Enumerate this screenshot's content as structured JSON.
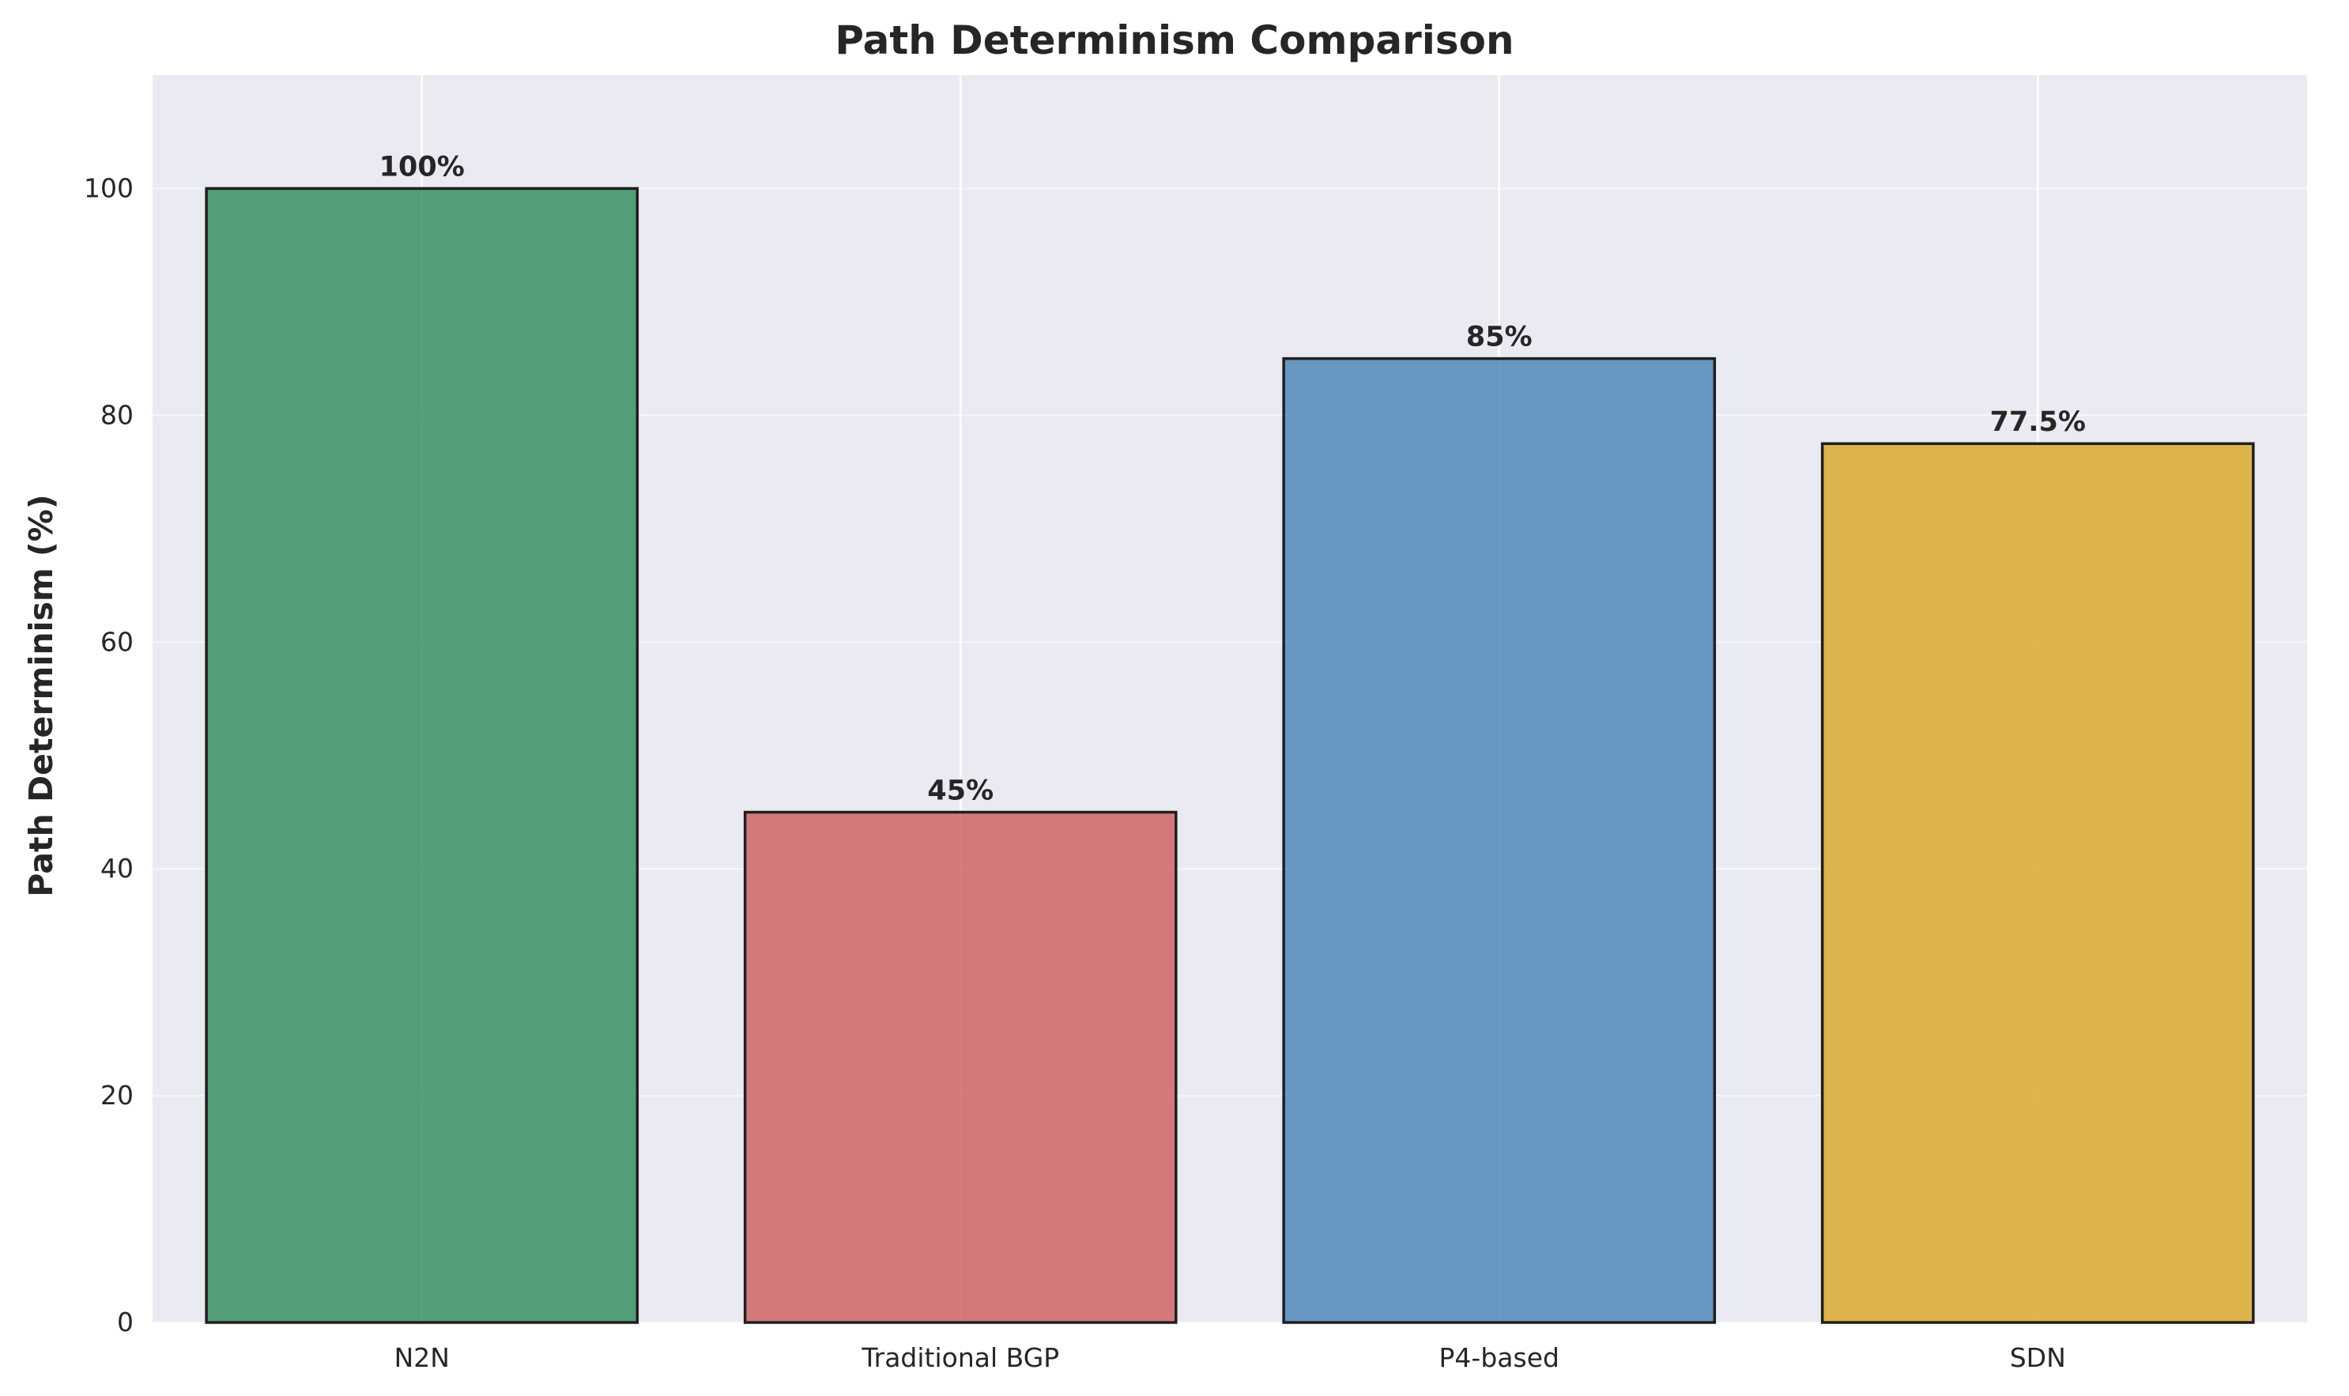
{
  "chart_data": {
    "type": "bar",
    "title": "Path Determinism Comparison",
    "xlabel": "",
    "ylabel": "Path Determinism (%)",
    "categories": [
      "N2N",
      "Traditional BGP",
      "P4-based",
      "SDN"
    ],
    "values": [
      100,
      45,
      85,
      77.5
    ],
    "value_labels": [
      "100%",
      "45%",
      "85%",
      "77.5%"
    ],
    "colors": [
      "#2e8b57",
      "#cd5c5c",
      "#4682b4",
      "#daa520"
    ],
    "ylim": [
      0,
      110
    ],
    "yticks": [
      0,
      20,
      40,
      60,
      80,
      100
    ],
    "ytick_labels": [
      "0",
      "20",
      "40",
      "60",
      "80",
      "100"
    ],
    "grid": true,
    "background": "#eaeaf2"
  }
}
